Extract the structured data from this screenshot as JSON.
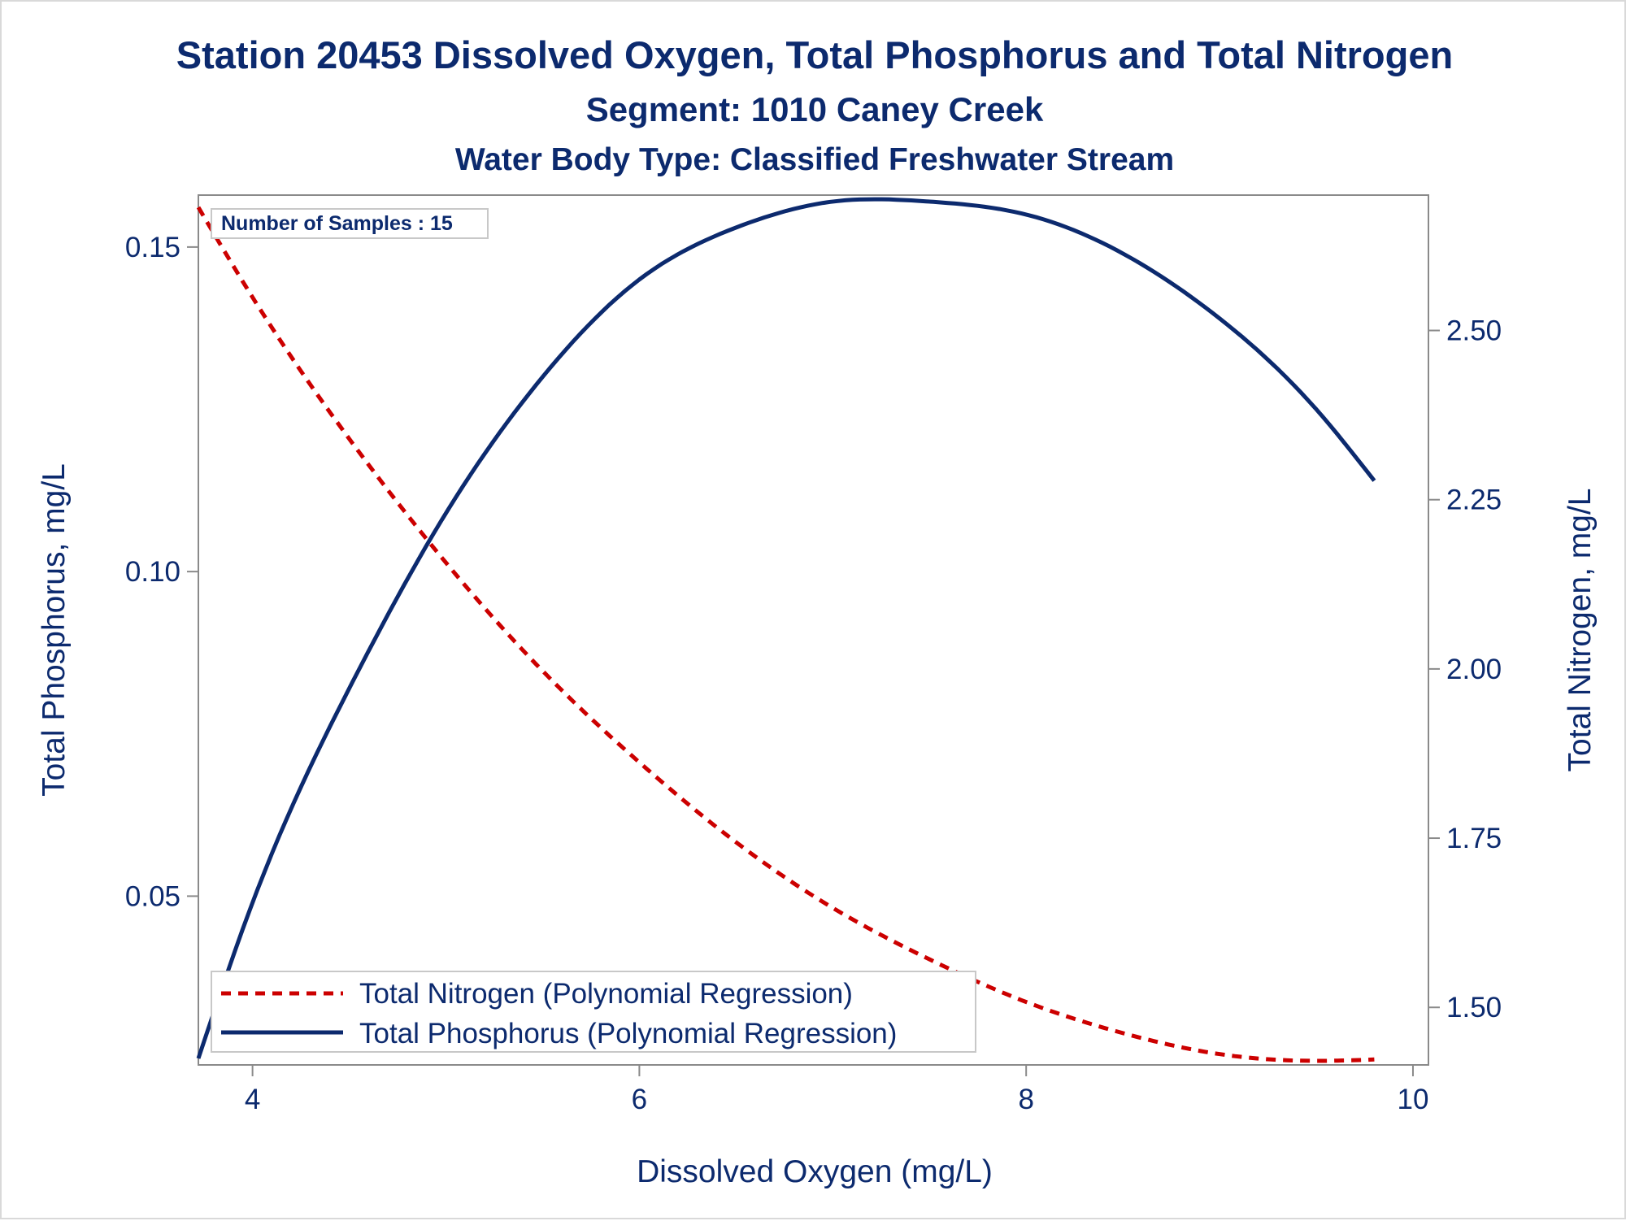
{
  "colors": {
    "phosphorus": "#0c2a6e",
    "nitrogen": "#cc0000",
    "text": "#0c2a6e",
    "frame": "#8a8a8a"
  },
  "chart_data": {
    "type": "line",
    "title": "Station 20453  Dissolved Oxygen, Total Phosphorus and Total Nitrogen",
    "subtitle": "Segment: 1010  Caney Creek",
    "subtitle2": "Water Body Type: Classified Freshwater Stream",
    "xlabel": "Dissolved Oxygen (mg/L)",
    "ylabel": "Total Phosphorus, mg/L",
    "y2label": "Total Nitrogen, mg/L",
    "xlim": [
      3.72,
      10.08
    ],
    "ylim": [
      0.024,
      0.158
    ],
    "y2lim": [
      1.415,
      2.7
    ],
    "xticks": [
      4,
      6,
      8,
      10
    ],
    "xtick_labels": [
      "4",
      "6",
      "8",
      "10"
    ],
    "yticks": [
      0.05,
      0.1,
      0.15
    ],
    "ytick_labels": [
      "0.05",
      "0.10",
      "0.15"
    ],
    "y2ticks": [
      1.5,
      1.75,
      2.0,
      2.25,
      2.5
    ],
    "y2tick_labels": [
      "1.50",
      "1.75",
      "2.00",
      "2.25",
      "2.50"
    ],
    "annotation": "Number of Samples : 15",
    "legend_position": "bottom-left-inside",
    "series": [
      {
        "name": "Total Nitrogen (Polynomial Regression)",
        "axis": "y2",
        "style": "dashed",
        "x": [
          3.72,
          4.0,
          4.5,
          5.0,
          5.5,
          6.0,
          6.5,
          7.0,
          7.5,
          8.0,
          8.5,
          9.0,
          9.5,
          9.8
        ],
        "y": [
          2.682,
          2.549,
          2.34,
          2.157,
          1.997,
          1.862,
          1.744,
          1.647,
          1.571,
          1.508,
          1.462,
          1.431,
          1.421,
          1.423
        ]
      },
      {
        "name": "Total Phosphorus (Polynomial Regression)",
        "axis": "y",
        "style": "solid",
        "x": [
          3.72,
          4.0,
          4.5,
          5.0,
          5.5,
          6.0,
          6.5,
          7.0,
          7.5,
          8.0,
          8.5,
          9.0,
          9.5,
          9.8
        ],
        "y": [
          0.025,
          0.049,
          0.082,
          0.109,
          0.13,
          0.145,
          0.153,
          0.157,
          0.157,
          0.155,
          0.149,
          0.139,
          0.125,
          0.114
        ]
      }
    ]
  }
}
